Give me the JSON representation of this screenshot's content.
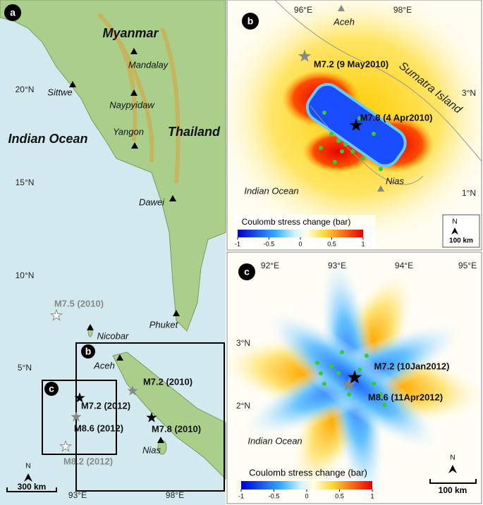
{
  "panel_a": {
    "label": "a",
    "countries": [
      "Myanmar",
      "Thailand"
    ],
    "ocean": "Indian Ocean",
    "cities": [
      "Mandalay",
      "Naypyidaw",
      "Sittwe",
      "Yangon",
      "Dawei",
      "Phuket",
      "Nicobar",
      "Aceh",
      "Nias"
    ],
    "lat_labels": [
      "20°N",
      "15°N",
      "10°N",
      "5°N"
    ],
    "lon_labels": [
      "93°E",
      "98°E"
    ],
    "earthquakes": [
      "M7.5 (2010)",
      "M7.2 (2010)",
      "M7.2 (2012)",
      "M8.6 (2012)",
      "M7.8 (2010)",
      "M8.2 (2012)"
    ],
    "box_labels": [
      "b",
      "c"
    ],
    "scale": "300 km",
    "north": "N"
  },
  "panel_b": {
    "label": "b",
    "lon_labels": [
      "96°E",
      "98°E"
    ],
    "lat_labels": [
      "3°N",
      "1°N"
    ],
    "places": [
      "Aceh",
      "Sumatra Island",
      "Indian Ocean",
      "Nias"
    ],
    "earthquakes": [
      "M7.2 (9 May2010)",
      "M7.8 (4 Apr2010)"
    ],
    "colorbar": {
      "title": "Coulomb stress change (bar)",
      "ticks": [
        -1,
        -0.5,
        0,
        0.5,
        1
      ]
    },
    "scale": "100 km",
    "north": "N"
  },
  "panel_c": {
    "label": "c",
    "lon_labels": [
      "92°E",
      "93°E",
      "94°E",
      "95°E"
    ],
    "lat_labels": [
      "3°N",
      "2°N"
    ],
    "places": [
      "Indian Ocean"
    ],
    "earthquakes": [
      "M7.2 (10Jan2012)",
      "M8.6 (11Apr2012)"
    ],
    "colorbar": {
      "title": "Coulomb stress change (bar)",
      "ticks": [
        -1,
        -0.5,
        0,
        0.5,
        1
      ]
    },
    "scale": "100 km",
    "north": "N"
  }
}
